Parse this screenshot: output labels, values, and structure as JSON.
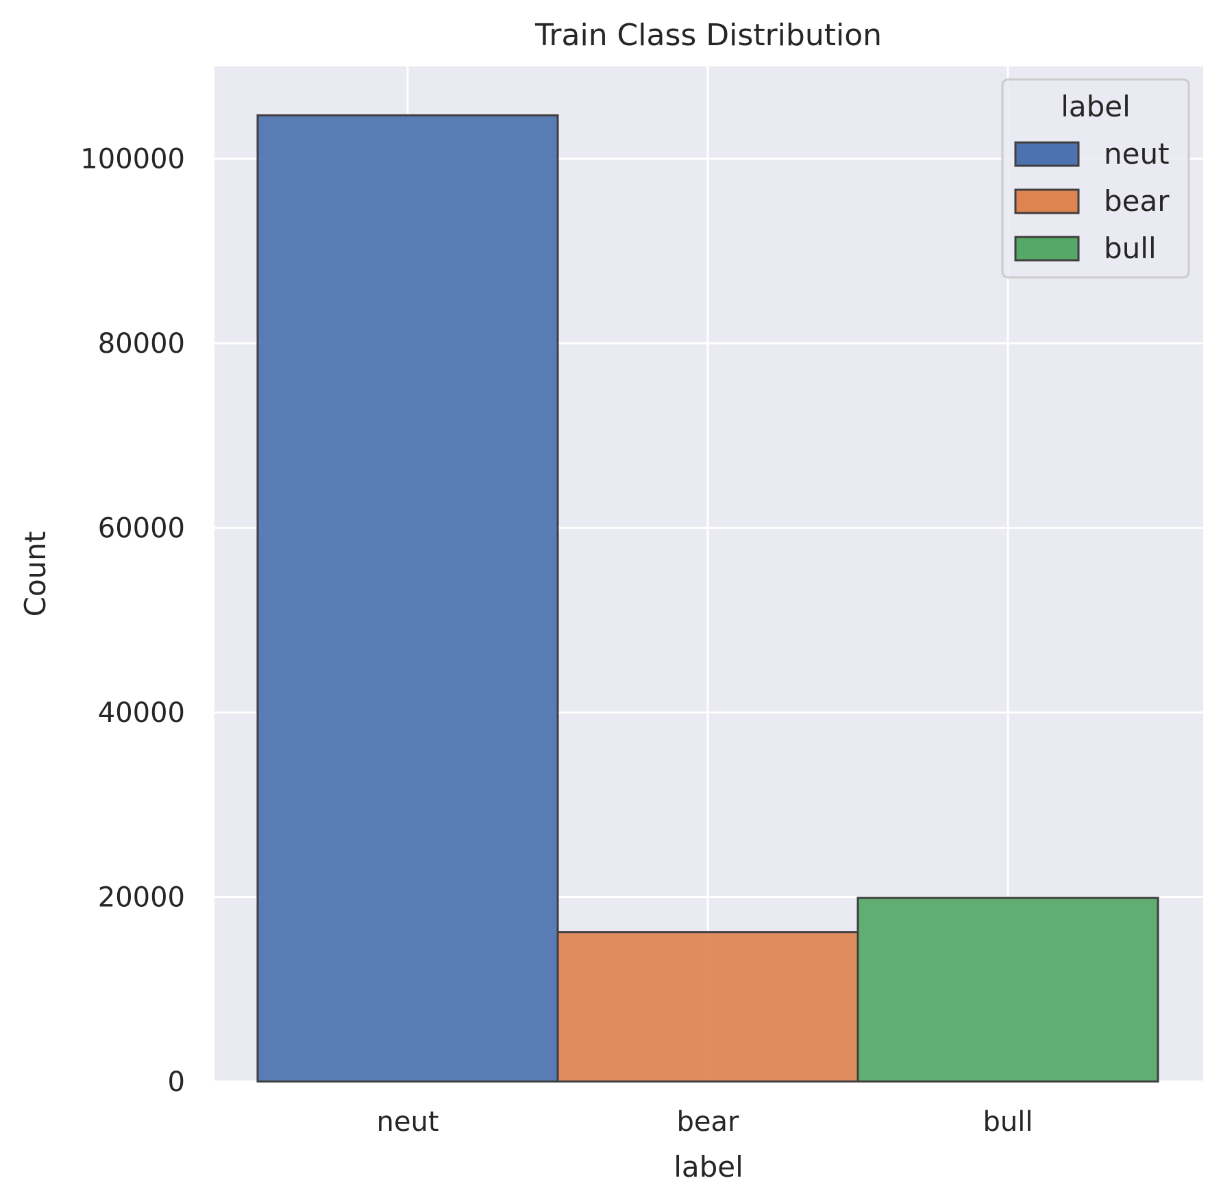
{
  "chart_data": {
    "type": "bar",
    "title": "Train Class Distribution",
    "xlabel": "label",
    "ylabel": "Count",
    "categories": [
      "neut",
      "bear",
      "bull"
    ],
    "values": [
      104700,
      16200,
      19900
    ],
    "ylim": [
      0,
      110000
    ],
    "yticks": [
      0,
      20000,
      40000,
      60000,
      80000,
      100000
    ],
    "ytick_labels": [
      "0",
      "20000",
      "40000",
      "60000",
      "80000",
      "100000"
    ],
    "colors": [
      "#4c72b0",
      "#dd8452",
      "#55a868"
    ],
    "edge_color": "#3f3f3f",
    "grid": true,
    "legend": {
      "title": "label",
      "position": "top-right",
      "entries": [
        "neut",
        "bear",
        "bull"
      ]
    }
  }
}
